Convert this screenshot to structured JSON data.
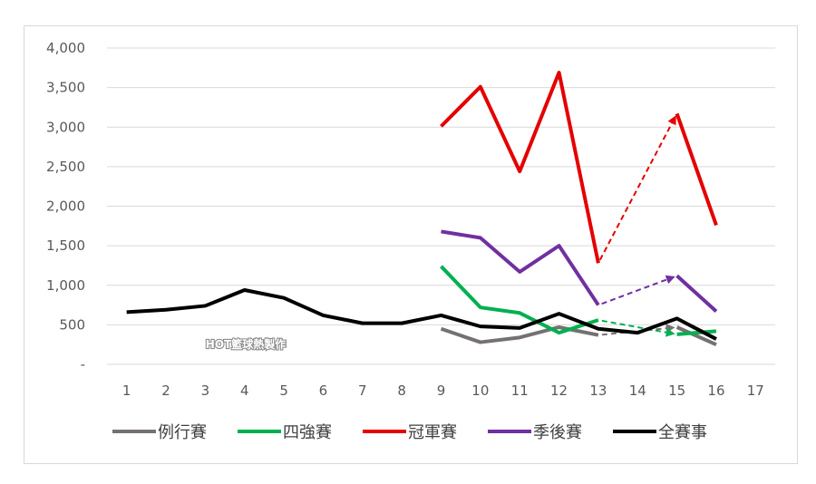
{
  "watermark": "HOT籃球熱製作",
  "chart_data": {
    "type": "line",
    "categories": [
      "1",
      "2",
      "3",
      "4",
      "5",
      "6",
      "7",
      "8",
      "9",
      "10",
      "11",
      "12",
      "13",
      "14",
      "15",
      "16",
      "17"
    ],
    "ylim": [
      0,
      4000
    ],
    "yticks": [
      0,
      500,
      1000,
      1500,
      2000,
      2500,
      3000,
      3500,
      4000
    ],
    "ytick_labels": [
      "-",
      "500",
      "1,000",
      "1,500",
      "2,000",
      "2,500",
      "3,000",
      "3,500",
      "4,000"
    ],
    "grid": true,
    "legend_position": "bottom",
    "series": [
      {
        "name": "例行賽",
        "color": "#767171",
        "values": [
          null,
          null,
          null,
          null,
          null,
          null,
          null,
          null,
          450,
          280,
          340,
          470,
          370,
          null,
          470,
          250,
          null
        ],
        "dashed": [
          [
            13,
            15
          ]
        ]
      },
      {
        "name": "四強賽",
        "color": "#00b050",
        "values": [
          null,
          null,
          null,
          null,
          null,
          null,
          null,
          null,
          1240,
          720,
          650,
          400,
          560,
          null,
          380,
          420,
          null
        ],
        "dashed": [
          [
            13,
            15
          ]
        ]
      },
      {
        "name": "冠軍賽",
        "color": "#e50000",
        "values": [
          null,
          null,
          null,
          null,
          null,
          null,
          null,
          null,
          3010,
          3510,
          2440,
          3690,
          1280,
          null,
          3170,
          1760,
          null
        ],
        "dashed": [
          [
            13,
            15
          ]
        ]
      },
      {
        "name": "季後賽",
        "color": "#7030a0",
        "values": [
          null,
          null,
          null,
          null,
          null,
          null,
          null,
          null,
          1680,
          1600,
          1170,
          1500,
          750,
          null,
          1120,
          670,
          null
        ],
        "dashed": [
          [
            13,
            15
          ]
        ]
      },
      {
        "name": "全賽事",
        "color": "#000000",
        "values": [
          660,
          690,
          740,
          940,
          840,
          620,
          520,
          520,
          620,
          480,
          460,
          640,
          450,
          400,
          580,
          320,
          null
        ],
        "dashed": []
      }
    ]
  }
}
